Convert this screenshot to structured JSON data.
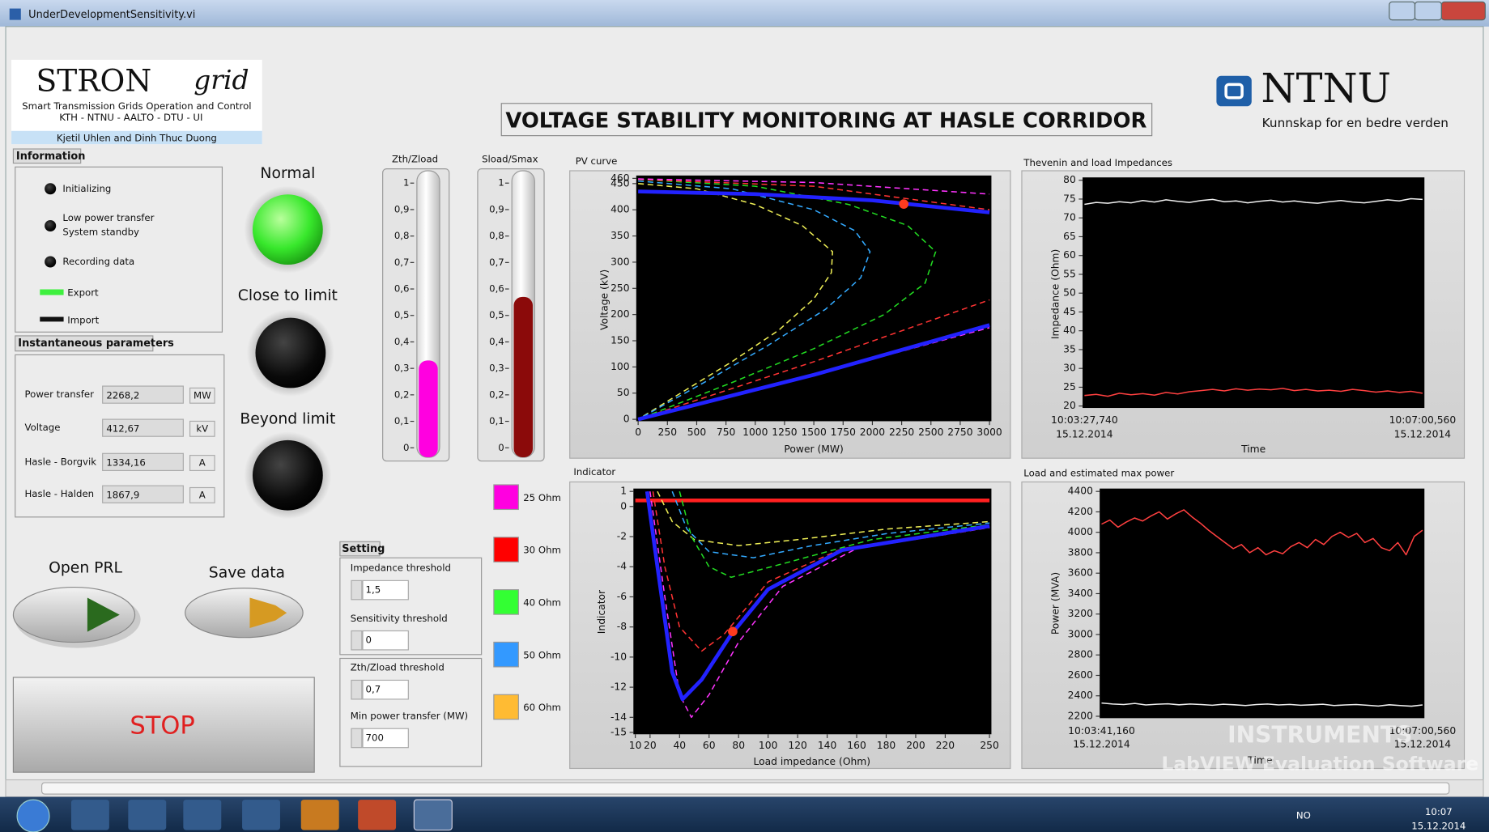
{
  "window": {
    "title": "UnderDevelopmentSensitivity.vi"
  },
  "logo": {
    "brand": "STRON",
    "brand_script": "grid",
    "line1": "Smart Transmission Grids Operation and Control",
    "line2": "KTH  -  NTNU  -  AALTO  -  DTU  -  UI",
    "authors": "Kjetil Uhlen and Dinh Thuc Duong"
  },
  "header": {
    "title": "VOLTAGE STABILITY MONITORING AT HASLE CORRIDOR"
  },
  "ntnu": {
    "name": "NTNU",
    "slogan": "Kunnskap for en bedre verden"
  },
  "information": {
    "label": "Information",
    "items": [
      [
        "Initializing"
      ],
      [
        "Low power transfer",
        "System standby"
      ],
      [
        "Recording data"
      ]
    ],
    "export": "Export",
    "import": "Import"
  },
  "instantaneous": {
    "label": "Instantaneous parameters",
    "rows": [
      {
        "label": "Power transfer",
        "value": "2268,2",
        "unit": "MW"
      },
      {
        "label": "Voltage",
        "value": "412,67",
        "unit": "kV"
      },
      {
        "label": "Hasle - Borgvik",
        "value": "1334,16",
        "unit": "A"
      },
      {
        "label": "Hasle - Halden",
        "value": "1867,9",
        "unit": "A"
      }
    ]
  },
  "status": [
    "Normal",
    "Close to limit",
    "Beyond limit"
  ],
  "gauges": [
    {
      "label": "Zth/Zload",
      "level": 0.33,
      "color": "#ff00e0",
      "ylim": [
        0,
        1
      ],
      "yticks": [
        0,
        {
          "value": 0.1,
          "label": "0,1"
        },
        {
          "value": 0.2,
          "label": "0,2"
        },
        {
          "value": 0.3,
          "label": "0,3"
        },
        {
          "value": 0.4,
          "label": "0,4"
        },
        {
          "value": 0.5,
          "label": "0,5"
        },
        {
          "value": 0.6,
          "label": "0,6"
        },
        {
          "value": 0.7,
          "label": "0,7"
        },
        {
          "value": 0.8,
          "label": "0,8"
        },
        {
          "value": 0.9,
          "label": "0,9"
        },
        1
      ]
    },
    {
      "label": "Sload/Smax",
      "level": 0.57,
      "color": "#8b0a0a",
      "ylim": [
        0,
        1
      ],
      "yticks": [
        0,
        {
          "value": 0.1,
          "label": "0,1"
        },
        {
          "value": 0.2,
          "label": "0,2"
        },
        {
          "value": 0.3,
          "label": "0,3"
        },
        {
          "value": 0.4,
          "label": "0,4"
        },
        {
          "value": 0.5,
          "label": "0,5"
        },
        {
          "value": 0.6,
          "label": "0,6"
        },
        {
          "value": 0.7,
          "label": "0,7"
        },
        {
          "value": 0.8,
          "label": "0,8"
        },
        {
          "value": 0.9,
          "label": "0,9"
        },
        1
      ]
    }
  ],
  "legend": [
    {
      "label": "25 Ohm",
      "color": "#ff00e0"
    },
    {
      "label": "30 Ohm",
      "color": "#ff0000"
    },
    {
      "label": "40 Ohm",
      "color": "#33ff33"
    },
    {
      "label": "50 Ohm",
      "color": "#3399ff"
    },
    {
      "label": "60 Ohm",
      "color": "#ffbb33"
    }
  ],
  "setting": {
    "label": "Setting",
    "fields": [
      {
        "label": "Impedance threshold",
        "value": "1,5"
      },
      {
        "label": "Sensitivity threshold",
        "value": "0"
      },
      {
        "label": "Zth/Zload threshold",
        "value": "0,7"
      },
      {
        "label": "Min power transfer (MW)",
        "value": "700"
      }
    ]
  },
  "buttons": {
    "open": "Open PRL",
    "save": "Save data",
    "stop": "STOP"
  },
  "charts": {
    "pv": {
      "type": "line",
      "title": "PV curve",
      "xlabel": "Power (MW)",
      "ylabel": "Voltage (kV)",
      "xlim": [
        0,
        3000
      ],
      "ylim": [
        0,
        460
      ],
      "xticks": [
        0,
        250,
        500,
        750,
        1000,
        1250,
        1500,
        1750,
        2000,
        2250,
        2500,
        2750,
        3000
      ],
      "yticks": [
        0,
        50,
        100,
        150,
        200,
        250,
        300,
        350,
        400,
        450,
        460
      ],
      "series": [
        {
          "color": "#eeee55",
          "style": "dashed",
          "x": [
            0,
            500,
            1000,
            1400,
            1660,
            1650,
            1500,
            1200,
            800,
            400,
            0
          ],
          "values": [
            450,
            440,
            410,
            370,
            320,
            280,
            230,
            170,
            110,
            55,
            0
          ]
        },
        {
          "color": "#33aaff",
          "style": "dashed",
          "x": [
            0,
            800,
            1500,
            1850,
            1980,
            1900,
            1600,
            1100,
            600,
            0
          ],
          "values": [
            455,
            440,
            400,
            360,
            320,
            270,
            210,
            140,
            75,
            0
          ]
        },
        {
          "color": "#22dd22",
          "style": "dashed",
          "x": [
            0,
            1000,
            1800,
            2300,
            2540,
            2450,
            2100,
            1500,
            800,
            0
          ],
          "values": [
            458,
            445,
            410,
            370,
            320,
            260,
            200,
            135,
            70,
            0
          ]
        },
        {
          "color": "#ff3333",
          "style": "dashed",
          "x": [
            0,
            1500,
            3000,
            null,
            0,
            1500,
            3000
          ],
          "values": [
            458,
            445,
            400,
            null,
            0,
            110,
            228
          ]
        },
        {
          "color": "#ff33ff",
          "style": "dashed",
          "x": [
            0,
            1500,
            3000,
            null,
            0,
            1500,
            3000
          ],
          "values": [
            459,
            452,
            430,
            null,
            0,
            85,
            175
          ]
        },
        {
          "color": "#2222ff",
          "style": "thick",
          "x": [
            0,
            1000,
            2000,
            3000,
            null,
            0,
            1500,
            3000
          ],
          "values": [
            435,
            430,
            418,
            395,
            null,
            0,
            85,
            180
          ]
        }
      ],
      "marker": {
        "x": 2268,
        "y": 411,
        "color": "#ff3b1f"
      }
    },
    "indicator": {
      "type": "line",
      "title": "Indicator",
      "xlabel": "Load impedance (Ohm)",
      "ylabel": "Indicator",
      "xlim": [
        10,
        250
      ],
      "ylim": [
        -15,
        1
      ],
      "xticks": [
        10,
        20,
        40,
        60,
        80,
        100,
        120,
        140,
        160,
        180,
        200,
        220,
        250
      ],
      "yticks": [
        -15,
        -14,
        -12,
        -10,
        -8,
        -6,
        -4,
        -2,
        0,
        1
      ],
      "series": [
        {
          "color": "#ff2020",
          "style": "thick",
          "x": [
            10,
            250
          ],
          "values": [
            0.4,
            0.4
          ]
        },
        {
          "color": "#eeee55",
          "style": "dashed",
          "x": [
            25,
            35,
            50,
            80,
            120,
            180,
            250
          ],
          "values": [
            1,
            -1,
            -2.2,
            -2.6,
            -2.2,
            -1.5,
            -1
          ]
        },
        {
          "color": "#33aaff",
          "style": "dashed",
          "x": [
            35,
            45,
            60,
            90,
            130,
            180,
            250
          ],
          "values": [
            1,
            -1.5,
            -3,
            -3.4,
            -2.6,
            -1.8,
            -1.1
          ]
        },
        {
          "color": "#22dd22",
          "style": "dashed",
          "x": [
            40,
            48,
            60,
            75,
            110,
            170,
            250
          ],
          "values": [
            1,
            -2,
            -4,
            -4.7,
            -3.8,
            -2.2,
            -1.2
          ]
        },
        {
          "color": "#ff3333",
          "style": "dashed",
          "x": [
            22,
            30,
            40,
            55,
            70,
            100,
            150,
            250
          ],
          "values": [
            1,
            -4,
            -8,
            -9.6,
            -8.5,
            -5,
            -2.8,
            -1.3
          ]
        },
        {
          "color": "#ff33ff",
          "style": "dashed",
          "x": [
            20,
            30,
            40,
            48,
            60,
            80,
            110,
            160,
            250
          ],
          "values": [
            1,
            -6,
            -12.5,
            -14,
            -12.5,
            -9,
            -5.3,
            -2.8,
            -1.4
          ]
        },
        {
          "color": "#2222ff",
          "style": "thick",
          "x": [
            18,
            25,
            35,
            42,
            55,
            75,
            100,
            150,
            250
          ],
          "values": [
            1,
            -4,
            -11,
            -12.8,
            -11.5,
            -8.5,
            -5.5,
            -2.9,
            -1.3
          ]
        }
      ],
      "marker": {
        "x": 76,
        "y": -8.3,
        "color": "#ff3b1f"
      }
    },
    "thevenin": {
      "type": "line",
      "title": "Thevenin and load Impedances",
      "xlabel": "Time",
      "ylabel": "Impedance (Ohm)",
      "ylim": [
        20,
        80
      ],
      "yticks": [
        20,
        25,
        30,
        35,
        40,
        45,
        50,
        55,
        60,
        65,
        70,
        75,
        80
      ],
      "xtick_labels": [
        [
          "10:03:27,740",
          "15.12.2014"
        ],
        [
          "10:07:00,560",
          "15.12.2014"
        ]
      ],
      "series": [
        {
          "color": "#f0f0f0",
          "style": "solid",
          "values": [
            73.6,
            74.1,
            73.9,
            74.3,
            74.0,
            74.6,
            74.2,
            74.8,
            74.4,
            74.1,
            74.6,
            74.9,
            74.3,
            74.5,
            74.0,
            74.4,
            74.7,
            74.2,
            74.5,
            74.1,
            73.9,
            74.3,
            74.6,
            74.2,
            74.0,
            74.4,
            74.8,
            74.5,
            75.1,
            74.9
          ]
        },
        {
          "color": "#ff4040",
          "style": "solid",
          "values": [
            22.8,
            23.1,
            22.6,
            23.4,
            23.0,
            23.3,
            22.9,
            23.6,
            23.2,
            23.8,
            24.1,
            24.4,
            24.0,
            24.6,
            24.2,
            24.5,
            24.3,
            24.7,
            24.1,
            24.4,
            24.0,
            24.2,
            23.9,
            24.4,
            24.1,
            23.7,
            24.0,
            23.6,
            23.9,
            23.4
          ]
        }
      ]
    },
    "load": {
      "type": "line",
      "title": "Load and estimated max power",
      "xlabel": "Time",
      "ylabel": "Power (MVA)",
      "ylim": [
        2200,
        4400
      ],
      "yticks": [
        2200,
        2400,
        2600,
        2800,
        3000,
        3200,
        3400,
        3600,
        3800,
        4000,
        4200,
        4400
      ],
      "xtick_labels": [
        [
          "10:03:41,160",
          "15.12.2014"
        ],
        [
          "10:07:00,560",
          "15.12.2014"
        ]
      ],
      "series": [
        {
          "color": "#ff4040",
          "style": "solid",
          "values": [
            4080,
            4120,
            4050,
            4100,
            4140,
            4110,
            4160,
            4200,
            4130,
            4180,
            4220,
            4150,
            4090,
            4020,
            3960,
            3900,
            3840,
            3880,
            3800,
            3850,
            3780,
            3820,
            3790,
            3860,
            3900,
            3850,
            3930,
            3880,
            3960,
            4000,
            3950,
            3990,
            3900,
            3940,
            3850,
            3820,
            3900,
            3780,
            3960,
            4020
          ]
        },
        {
          "color": "#f0f0f0",
          "style": "solid",
          "values": [
            2330,
            2320,
            2315,
            2325,
            2310,
            2318,
            2322,
            2312,
            2320,
            2315,
            2308,
            2318,
            2312,
            2305,
            2315,
            2320,
            2310,
            2316,
            2308,
            2312,
            2318,
            2305,
            2310,
            2315,
            2308,
            2300,
            2312,
            2305,
            2298,
            2310
          ]
        }
      ]
    }
  },
  "watermark": {
    "line1": "INSTRUMENTS",
    "line2": "LabVIEW Evaluation Software"
  },
  "taskbar": {
    "language": "NO",
    "time": "10:07",
    "date": "15.12.2014"
  }
}
